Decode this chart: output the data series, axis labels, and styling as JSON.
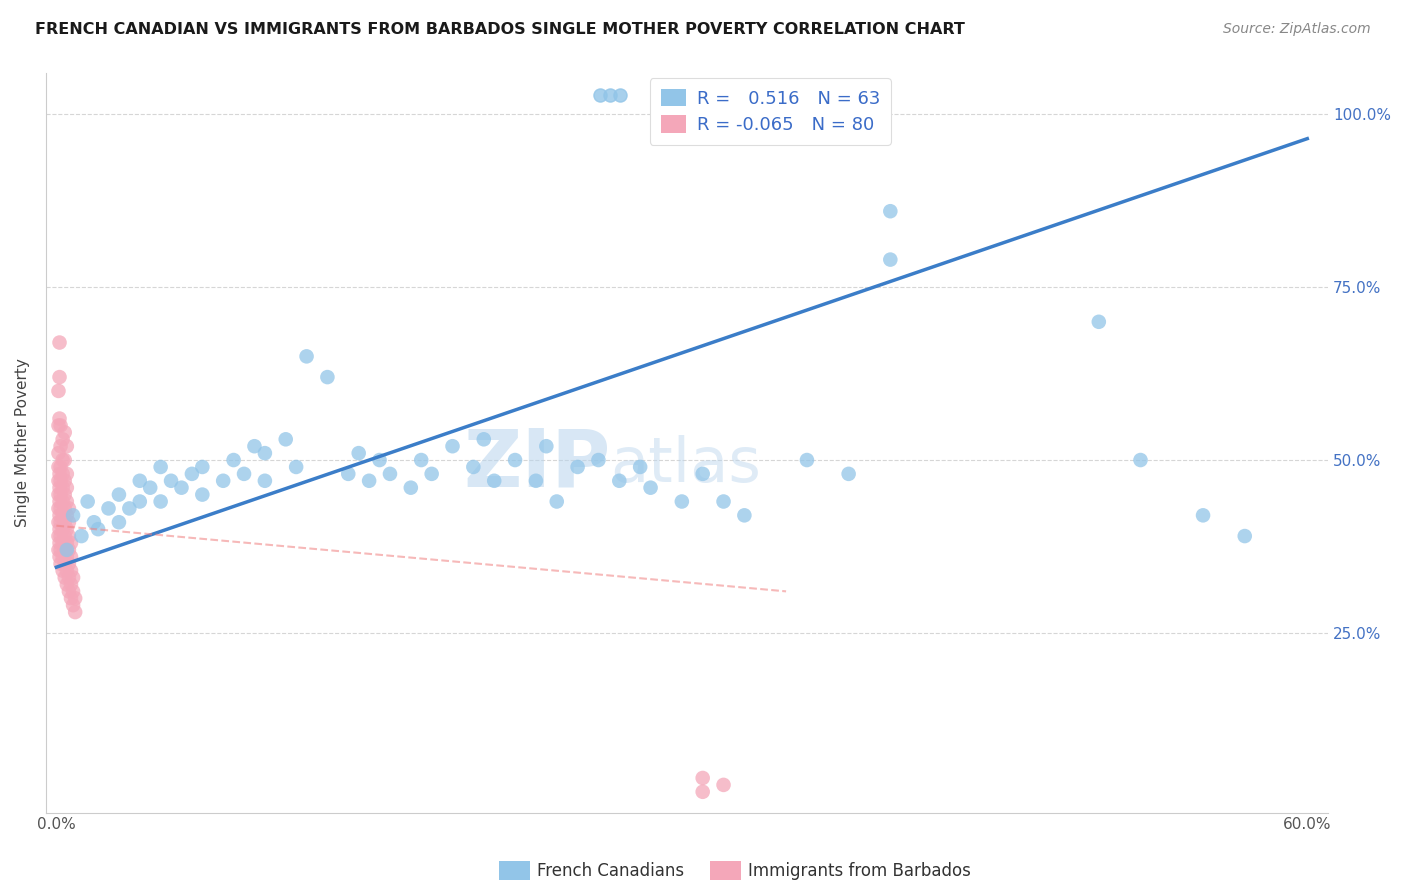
{
  "title": "FRENCH CANADIAN VS IMMIGRANTS FROM BARBADOS SINGLE MOTHER POVERTY CORRELATION CHART",
  "source": "Source: ZipAtlas.com",
  "ylabel": "Single Mother Poverty",
  "xlim": [
    -0.005,
    0.61
  ],
  "ylim": [
    -0.01,
    1.06
  ],
  "xtick_positions": [
    0.0,
    0.1,
    0.2,
    0.3,
    0.4,
    0.5,
    0.6
  ],
  "xtick_labels": [
    "0.0%",
    "",
    "",
    "",
    "",
    "",
    "60.0%"
  ],
  "ytick_positions": [
    0.25,
    0.5,
    0.75,
    1.0
  ],
  "ytick_labels": [
    "25.0%",
    "50.0%",
    "75.0%",
    "100.0%"
  ],
  "blue_R": 0.516,
  "blue_N": 63,
  "pink_R": -0.065,
  "pink_N": 80,
  "blue_color": "#92C5E8",
  "pink_color": "#F4A7B9",
  "blue_line_color": "#3B7DC8",
  "pink_line_color": "#F08080",
  "legend_label_blue": "French Canadians",
  "legend_label_pink": "Immigrants from Barbados",
  "blue_line_x0": 0.0,
  "blue_line_y0": 0.345,
  "blue_line_x1": 0.6,
  "blue_line_y1": 0.965,
  "pink_line_x0": 0.0,
  "pink_line_y0": 0.405,
  "pink_line_x1": 0.35,
  "pink_line_y1": 0.31,
  "blue_points_x": [
    0.005,
    0.008,
    0.012,
    0.015,
    0.018,
    0.02,
    0.025,
    0.03,
    0.03,
    0.035,
    0.04,
    0.04,
    0.045,
    0.05,
    0.05,
    0.055,
    0.06,
    0.065,
    0.07,
    0.07,
    0.08,
    0.085,
    0.09,
    0.095,
    0.1,
    0.1,
    0.11,
    0.115,
    0.12,
    0.13,
    0.14,
    0.145,
    0.15,
    0.155,
    0.16,
    0.17,
    0.175,
    0.18,
    0.19,
    0.2,
    0.205,
    0.21,
    0.22,
    0.23,
    0.235,
    0.24,
    0.25,
    0.26,
    0.27,
    0.28,
    0.285,
    0.3,
    0.31,
    0.32,
    0.33,
    0.36,
    0.38,
    0.4,
    0.4,
    0.5,
    0.52,
    0.55,
    0.57
  ],
  "blue_points_y": [
    0.37,
    0.42,
    0.39,
    0.44,
    0.41,
    0.4,
    0.43,
    0.41,
    0.45,
    0.43,
    0.47,
    0.44,
    0.46,
    0.49,
    0.44,
    0.47,
    0.46,
    0.48,
    0.45,
    0.49,
    0.47,
    0.5,
    0.48,
    0.52,
    0.51,
    0.47,
    0.53,
    0.49,
    0.65,
    0.62,
    0.48,
    0.51,
    0.47,
    0.5,
    0.48,
    0.46,
    0.5,
    0.48,
    0.52,
    0.49,
    0.53,
    0.47,
    0.5,
    0.47,
    0.52,
    0.44,
    0.49,
    0.5,
    0.47,
    0.49,
    0.46,
    0.44,
    0.48,
    0.44,
    0.42,
    0.5,
    0.48,
    0.86,
    0.79,
    0.7,
    0.5,
    0.42,
    0.39
  ],
  "pink_points_x": [
    0.001,
    0.001,
    0.001,
    0.001,
    0.001,
    0.001,
    0.001,
    0.001,
    0.001,
    0.001,
    0.0015,
    0.0015,
    0.0015,
    0.0015,
    0.0015,
    0.0015,
    0.0015,
    0.0015,
    0.0015,
    0.0015,
    0.002,
    0.002,
    0.002,
    0.002,
    0.002,
    0.002,
    0.002,
    0.002,
    0.002,
    0.002,
    0.003,
    0.003,
    0.003,
    0.003,
    0.003,
    0.003,
    0.003,
    0.003,
    0.003,
    0.003,
    0.004,
    0.004,
    0.004,
    0.004,
    0.004,
    0.004,
    0.004,
    0.004,
    0.004,
    0.004,
    0.005,
    0.005,
    0.005,
    0.005,
    0.005,
    0.005,
    0.005,
    0.005,
    0.005,
    0.005,
    0.006,
    0.006,
    0.006,
    0.006,
    0.006,
    0.006,
    0.006,
    0.007,
    0.007,
    0.007,
    0.007,
    0.007,
    0.008,
    0.008,
    0.008,
    0.009,
    0.009,
    0.31,
    0.31,
    0.32
  ],
  "pink_points_y": [
    0.37,
    0.39,
    0.41,
    0.43,
    0.45,
    0.47,
    0.49,
    0.51,
    0.55,
    0.6,
    0.36,
    0.38,
    0.4,
    0.42,
    0.44,
    0.46,
    0.48,
    0.56,
    0.62,
    0.67,
    0.35,
    0.37,
    0.39,
    0.41,
    0.43,
    0.45,
    0.47,
    0.49,
    0.52,
    0.55,
    0.34,
    0.36,
    0.38,
    0.4,
    0.42,
    0.44,
    0.46,
    0.48,
    0.5,
    0.53,
    0.33,
    0.35,
    0.37,
    0.39,
    0.41,
    0.43,
    0.45,
    0.47,
    0.5,
    0.54,
    0.32,
    0.34,
    0.36,
    0.38,
    0.4,
    0.42,
    0.44,
    0.46,
    0.48,
    0.52,
    0.31,
    0.33,
    0.35,
    0.37,
    0.39,
    0.41,
    0.43,
    0.3,
    0.32,
    0.34,
    0.36,
    0.38,
    0.29,
    0.31,
    0.33,
    0.28,
    0.3,
    0.02,
    0.04,
    0.03
  ]
}
